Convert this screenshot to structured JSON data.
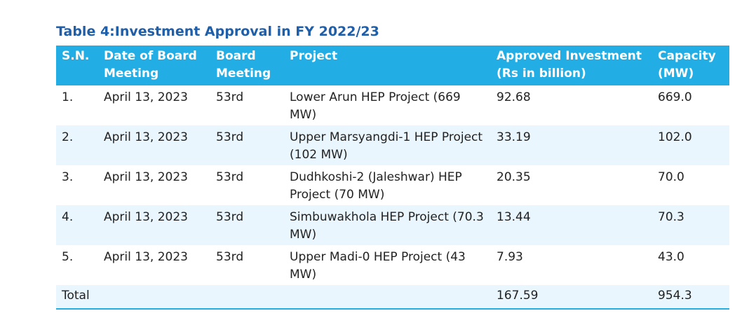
{
  "caption": "Table 4:Investment Approval in FY 2022/23",
  "headers": {
    "sn": "S.N.",
    "date": "Date of Board Meeting",
    "board": "Board Meeting",
    "project": "Project",
    "investment": "Approved Investment (Rs in billion)",
    "capacity": "Capacity (MW)"
  },
  "rows": [
    {
      "sn": "1.",
      "date": "April 13, 2023",
      "board": "53rd",
      "project": "Lower Arun HEP Project (669 MW)",
      "investment": "92.68",
      "capacity": "669.0"
    },
    {
      "sn": "2.",
      "date": "April 13, 2023",
      "board": "53rd",
      "project": "Upper Marsyangdi-1 HEP Project (102 MW)",
      "investment": "33.19",
      "capacity": "102.0"
    },
    {
      "sn": "3.",
      "date": "April 13, 2023",
      "board": "53rd",
      "project": "Dudhkoshi-2 (Jaleshwar) HEP Project (70 MW)",
      "investment": "20.35",
      "capacity": "70.0"
    },
    {
      "sn": "4.",
      "date": "April 13, 2023",
      "board": "53rd",
      "project": "Simbuwakhola HEP Project (70.3 MW)",
      "investment": "13.44",
      "capacity": "70.3"
    },
    {
      "sn": "5.",
      "date": "April 13, 2023",
      "board": "53rd",
      "project": "Upper Madi-0 HEP Project (43 MW)",
      "investment": "7.93",
      "capacity": "43.0"
    }
  ],
  "total": {
    "label": "Total",
    "investment": "167.59",
    "capacity": "954.3"
  },
  "colors": {
    "caption": "#1f5ea8",
    "header_bg": "#22ade4",
    "stripe_bg": "#e9f6fd"
  }
}
